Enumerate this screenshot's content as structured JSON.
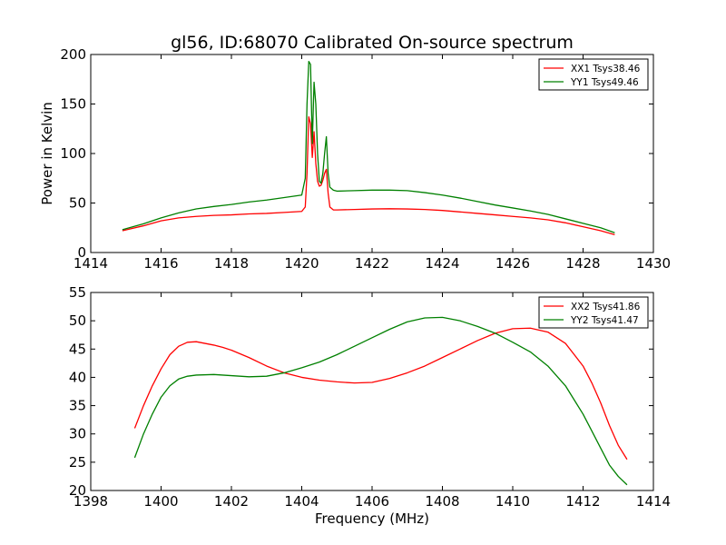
{
  "chart_data": [
    {
      "type": "line",
      "title": "gl56, ID:68070 Calibrated On-source spectrum",
      "xlabel": "",
      "ylabel": "Power in Kelvin",
      "xlim": [
        1414,
        1430
      ],
      "ylim": [
        0,
        200
      ],
      "xticks": [
        "1414",
        "1416",
        "1418",
        "1420",
        "1422",
        "1424",
        "1426",
        "1428",
        "1430"
      ],
      "yticks": [
        "0",
        "50",
        "100",
        "150",
        "200"
      ],
      "legend_position": "top-right",
      "grid": false,
      "series": [
        {
          "name": "XX1 Tsys38.46",
          "color": "#ff0000",
          "x": [
            1414.9,
            1415.5,
            1416.0,
            1416.5,
            1417.0,
            1417.5,
            1418.0,
            1418.5,
            1419.0,
            1419.5,
            1420.0,
            1420.1,
            1420.15,
            1420.2,
            1420.25,
            1420.3,
            1420.35,
            1420.4,
            1420.45,
            1420.5,
            1420.55,
            1420.6,
            1420.65,
            1420.7,
            1420.75,
            1420.8,
            1420.9,
            1421.0,
            1421.5,
            1422.0,
            1422.5,
            1423.0,
            1423.5,
            1424.0,
            1424.5,
            1425.0,
            1425.5,
            1426.0,
            1426.5,
            1427.0,
            1427.5,
            1428.0,
            1428.5,
            1428.9
          ],
          "values": [
            22,
            27,
            32,
            35,
            36.5,
            37.5,
            38,
            39,
            39.5,
            40.5,
            41.5,
            46,
            80,
            137,
            130,
            96,
            122,
            90,
            72,
            67,
            68,
            73,
            80,
            84,
            60,
            46,
            43,
            43,
            43.5,
            44,
            44.2,
            44,
            43.5,
            42.5,
            41,
            39.5,
            38,
            36.5,
            35,
            33,
            30,
            26,
            22,
            18
          ]
        },
        {
          "name": "YY1 Tsys49.46",
          "color": "#008000",
          "x": [
            1414.9,
            1415.5,
            1416.0,
            1416.5,
            1417.0,
            1417.5,
            1418.0,
            1418.5,
            1419.0,
            1419.5,
            1420.0,
            1420.1,
            1420.15,
            1420.2,
            1420.25,
            1420.3,
            1420.35,
            1420.4,
            1420.45,
            1420.5,
            1420.55,
            1420.6,
            1420.65,
            1420.7,
            1420.75,
            1420.8,
            1420.9,
            1421.0,
            1421.5,
            1422.0,
            1422.5,
            1423.0,
            1423.5,
            1424.0,
            1424.5,
            1425.0,
            1425.5,
            1426.0,
            1426.5,
            1427.0,
            1427.5,
            1428.0,
            1428.5,
            1428.9
          ],
          "values": [
            23,
            29,
            35,
            40,
            44,
            46.5,
            48.5,
            51,
            53,
            55.5,
            58,
            75,
            150,
            193,
            190,
            110,
            172,
            150,
            100,
            72,
            70,
            80,
            100,
            117,
            80,
            66,
            63,
            62,
            62.5,
            63,
            63,
            62.5,
            60.5,
            58,
            55,
            51.5,
            48,
            45,
            42,
            38.5,
            34,
            29.5,
            25,
            20
          ]
        }
      ]
    },
    {
      "type": "line",
      "title": "",
      "xlabel": "Frequency (MHz)",
      "ylabel": "",
      "xlim": [
        1398,
        1414
      ],
      "ylim": [
        20,
        55
      ],
      "xticks": [
        "1398",
        "1400",
        "1402",
        "1404",
        "1406",
        "1408",
        "1410",
        "1412",
        "1414"
      ],
      "yticks": [
        "20",
        "25",
        "30",
        "35",
        "40",
        "45",
        "50",
        "55"
      ],
      "legend_position": "top-right",
      "grid": false,
      "series": [
        {
          "name": "XX2 Tsys41.86",
          "color": "#ff0000",
          "x": [
            1399.25,
            1399.5,
            1399.75,
            1400.0,
            1400.25,
            1400.5,
            1400.75,
            1401.0,
            1401.25,
            1401.5,
            1401.75,
            1402.0,
            1402.5,
            1403.0,
            1403.5,
            1404.0,
            1404.5,
            1405.0,
            1405.5,
            1406.0,
            1406.5,
            1407.0,
            1407.5,
            1408.0,
            1408.5,
            1409.0,
            1409.5,
            1410.0,
            1410.5,
            1411.0,
            1411.5,
            1412.0,
            1412.25,
            1412.5,
            1412.75,
            1413.0,
            1413.25
          ],
          "values": [
            31,
            35,
            38.5,
            41.5,
            44,
            45.5,
            46.2,
            46.3,
            46,
            45.7,
            45.3,
            44.8,
            43.5,
            42,
            40.8,
            40,
            39.5,
            39.2,
            39,
            39.1,
            39.8,
            40.8,
            42,
            43.5,
            45,
            46.5,
            47.8,
            48.6,
            48.7,
            48,
            46,
            42,
            39,
            35.5,
            31.5,
            28,
            25.5
          ]
        },
        {
          "name": "YY2 Tsys41.47",
          "color": "#008000",
          "x": [
            1399.25,
            1399.5,
            1399.75,
            1400.0,
            1400.25,
            1400.5,
            1400.75,
            1401.0,
            1401.5,
            1402.0,
            1402.5,
            1403.0,
            1403.5,
            1404.0,
            1404.5,
            1405.0,
            1405.5,
            1406.0,
            1406.5,
            1407.0,
            1407.5,
            1408.0,
            1408.5,
            1409.0,
            1409.5,
            1410.0,
            1410.5,
            1411.0,
            1411.5,
            1412.0,
            1412.25,
            1412.5,
            1412.75,
            1413.0,
            1413.25
          ],
          "values": [
            25.8,
            30,
            33.5,
            36.5,
            38.5,
            39.7,
            40.2,
            40.4,
            40.5,
            40.3,
            40.1,
            40.2,
            40.8,
            41.7,
            42.7,
            44,
            45.5,
            47,
            48.5,
            49.8,
            50.5,
            50.6,
            50,
            49,
            47.8,
            46.2,
            44.5,
            42,
            38.5,
            33.5,
            30.5,
            27.5,
            24.5,
            22.5,
            21
          ]
        }
      ]
    }
  ]
}
